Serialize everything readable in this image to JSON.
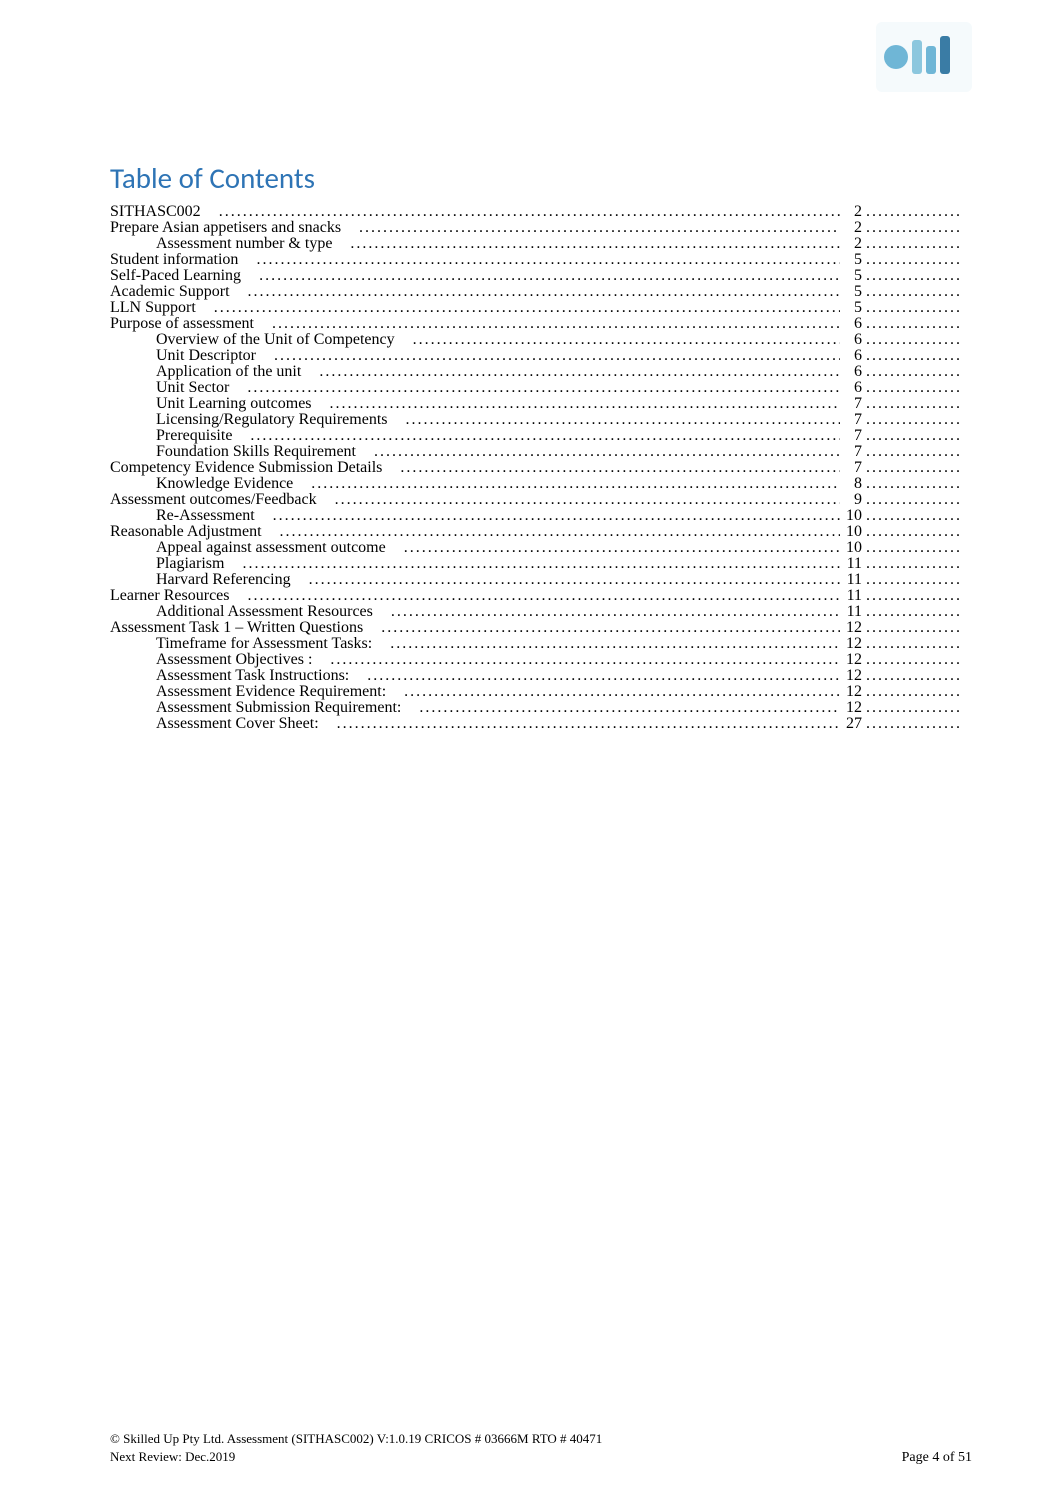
{
  "logo": {
    "primary_color": "#6fb6d6",
    "secondary_color": "#3a7ca5",
    "washed_color": "#dae9f1"
  },
  "title": "Table of Contents",
  "title_color": "#2e74b5",
  "toc": {
    "leader_char": ".",
    "entries": [
      {
        "level": 0,
        "label": "SITHASC002",
        "page": "2"
      },
      {
        "level": 0,
        "label": "Prepare Asian appetisers and snacks",
        "page": "2"
      },
      {
        "level": 1,
        "label": "Assessment number & type",
        "page": "2"
      },
      {
        "level": 0,
        "label": "Student information",
        "page": "5"
      },
      {
        "level": 0,
        "label": "Self-Paced Learning",
        "page": "5"
      },
      {
        "level": 0,
        "label": "Academic Support",
        "page": "5"
      },
      {
        "level": 0,
        "label": "LLN Support",
        "page": "5"
      },
      {
        "level": 0,
        "label": "Purpose of assessment",
        "page": "6"
      },
      {
        "level": 1,
        "label": "Overview of the Unit of Competency",
        "page": "6"
      },
      {
        "level": 1,
        "label": "Unit Descriptor",
        "page": "6"
      },
      {
        "level": 1,
        "label": "Application of the unit",
        "page": "6"
      },
      {
        "level": 1,
        "label": "Unit Sector",
        "page": "6"
      },
      {
        "level": 1,
        "label": "Unit Learning outcomes",
        "page": "7"
      },
      {
        "level": 1,
        "label": "Licensing/Regulatory Requirements",
        "page": "7"
      },
      {
        "level": 1,
        "label": "Prerequisite",
        "page": "7"
      },
      {
        "level": 1,
        "label": "Foundation Skills Requirement",
        "page": "7"
      },
      {
        "level": 0,
        "label": "Competency Evidence Submission Details",
        "page": "7"
      },
      {
        "level": 1,
        "label": "Knowledge Evidence",
        "page": "8"
      },
      {
        "level": 0,
        "label": "Assessment outcomes/Feedback",
        "page": "9"
      },
      {
        "level": 1,
        "label": "Re-Assessment",
        "page": "10"
      },
      {
        "level": 0,
        "label": "Reasonable Adjustment",
        "page": "10"
      },
      {
        "level": 1,
        "label": "Appeal against assessment outcome",
        "page": "10"
      },
      {
        "level": 1,
        "label": "Plagiarism",
        "page": "11"
      },
      {
        "level": 1,
        "label": "Harvard Referencing",
        "page": "11"
      },
      {
        "level": 0,
        "label": "Learner Resources",
        "page": "11"
      },
      {
        "level": 1,
        "label": "Additional Assessment Resources",
        "page": "11"
      },
      {
        "level": 0,
        "label": "Assessment Task 1 – Written Questions",
        "page": "12"
      },
      {
        "level": 1,
        "label": "Timeframe for Assessment Tasks:",
        "page": "12"
      },
      {
        "level": 1,
        "label": "Assessment Objectives :",
        "page": "12"
      },
      {
        "level": 1,
        "label": "Assessment Task Instructions:",
        "page": "12"
      },
      {
        "level": 1,
        "label": "Assessment Evidence Requirement:",
        "page": "12"
      },
      {
        "level": 1,
        "label": "Assessment Submission Requirement:",
        "page": "12"
      },
      {
        "level": 1,
        "label": "Assessment Cover Sheet:",
        "page": "27"
      }
    ]
  },
  "footer": {
    "line1": "© Skilled Up Pty Ltd. Assessment (SITHASC002) V:1.0.19 CRICOS # 03666M RTO # 40471",
    "line2": "Next Review: Dec.2019",
    "page_label": "Page 4 of 51"
  }
}
